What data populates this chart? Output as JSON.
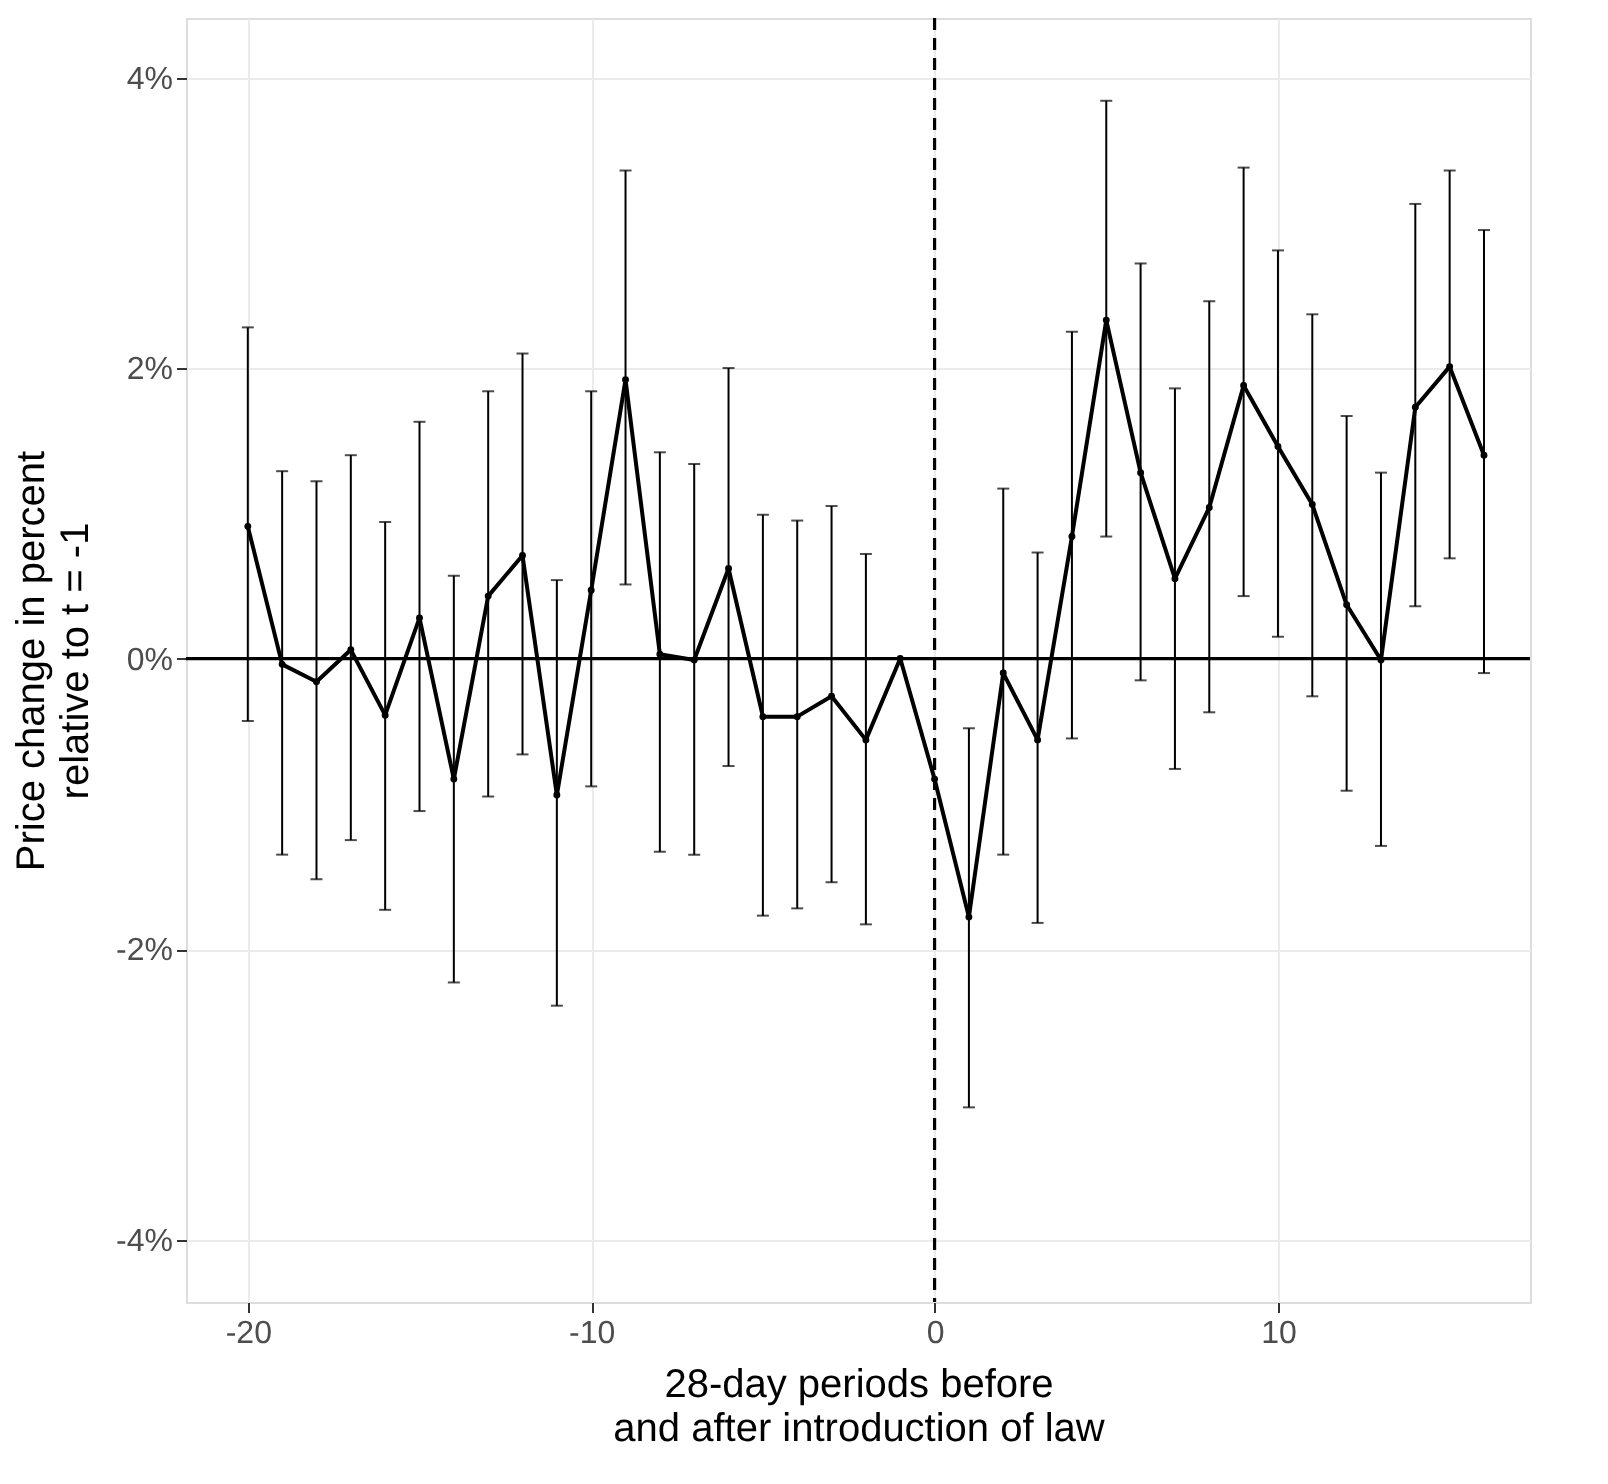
{
  "chart_data": {
    "type": "line",
    "xlabel": "28-day periods before\nand after introduction of law",
    "ylabel": "Price change in percent\nrelative to t = -1",
    "x": [
      -20,
      -19,
      -18,
      -17,
      -16,
      -15,
      -14,
      -13,
      -12,
      -11,
      -10,
      -9,
      -8,
      -7,
      -6,
      -5,
      -4,
      -3,
      -2,
      -1,
      0,
      1,
      2,
      3,
      4,
      5,
      6,
      7,
      8,
      9,
      10,
      11,
      12,
      13,
      14,
      15,
      16
    ],
    "series": [
      {
        "color": "#000000",
        "values": [
          0.91,
          -0.04,
          -0.16,
          0.06,
          -0.39,
          0.28,
          -0.83,
          0.43,
          0.71,
          -0.94,
          0.47,
          1.92,
          0.03,
          -0.01,
          0.62,
          -0.4,
          -0.4,
          -0.26,
          -0.56,
          0,
          -0.83,
          -1.78,
          -0.1,
          -0.56,
          0.84,
          2.33,
          1.28,
          0.55,
          1.04,
          1.88,
          1.46,
          1.06,
          0.37,
          -0.01,
          1.73,
          2.01,
          1.4
        ],
        "errors": [
          [
            -0.43,
            2.28
          ],
          [
            -1.35,
            1.29
          ],
          [
            -1.52,
            1.22
          ],
          [
            -1.25,
            1.4
          ],
          [
            -1.73,
            0.94
          ],
          [
            -1.05,
            1.63
          ],
          [
            -2.23,
            0.57
          ],
          [
            -0.95,
            1.84
          ],
          [
            -0.66,
            2.1
          ],
          [
            -2.39,
            0.54
          ],
          [
            -0.88,
            1.84
          ],
          [
            0.51,
            3.36
          ],
          [
            -1.33,
            1.42
          ],
          [
            -1.35,
            1.34
          ],
          [
            -0.74,
            2.0
          ],
          [
            -1.77,
            0.99
          ],
          [
            -1.72,
            0.95
          ],
          [
            -1.54,
            1.05
          ],
          [
            -1.83,
            0.72
          ],
          null,
          null,
          [
            -3.09,
            -0.48
          ],
          [
            -1.35,
            1.17
          ],
          [
            -1.82,
            0.73
          ],
          [
            -0.55,
            2.25
          ],
          [
            0.84,
            3.84
          ],
          [
            -0.15,
            2.72
          ],
          [
            -0.76,
            1.86
          ],
          [
            -0.37,
            2.46
          ],
          [
            0.43,
            3.38
          ],
          [
            0.15,
            2.81
          ],
          [
            -0.26,
            2.37
          ],
          [
            -0.91,
            1.67
          ],
          [
            -1.29,
            1.28
          ],
          [
            0.36,
            3.13
          ],
          [
            0.69,
            3.36
          ],
          [
            -0.1,
            2.95
          ]
        ]
      }
    ],
    "xlim": [
      -21.8,
      17.34
    ],
    "xticks": [
      -20,
      -10,
      0,
      10
    ],
    "ylim": [
      -4.43,
      4.41
    ],
    "yticks": [
      {
        "value": -4,
        "label": "-4%"
      },
      {
        "value": -2,
        "label": "-2%"
      },
      {
        "value": 0,
        "label": "0%"
      },
      {
        "value": 2,
        "label": "2%"
      },
      {
        "value": 4,
        "label": "4%"
      }
    ],
    "ref_lines": [
      {
        "axis": "y",
        "value": 0,
        "line_style": "solid"
      },
      {
        "axis": "x",
        "value": 0,
        "line_style": "dashed"
      }
    ],
    "grid": true,
    "marker": "circle",
    "line_style": "solid"
  }
}
